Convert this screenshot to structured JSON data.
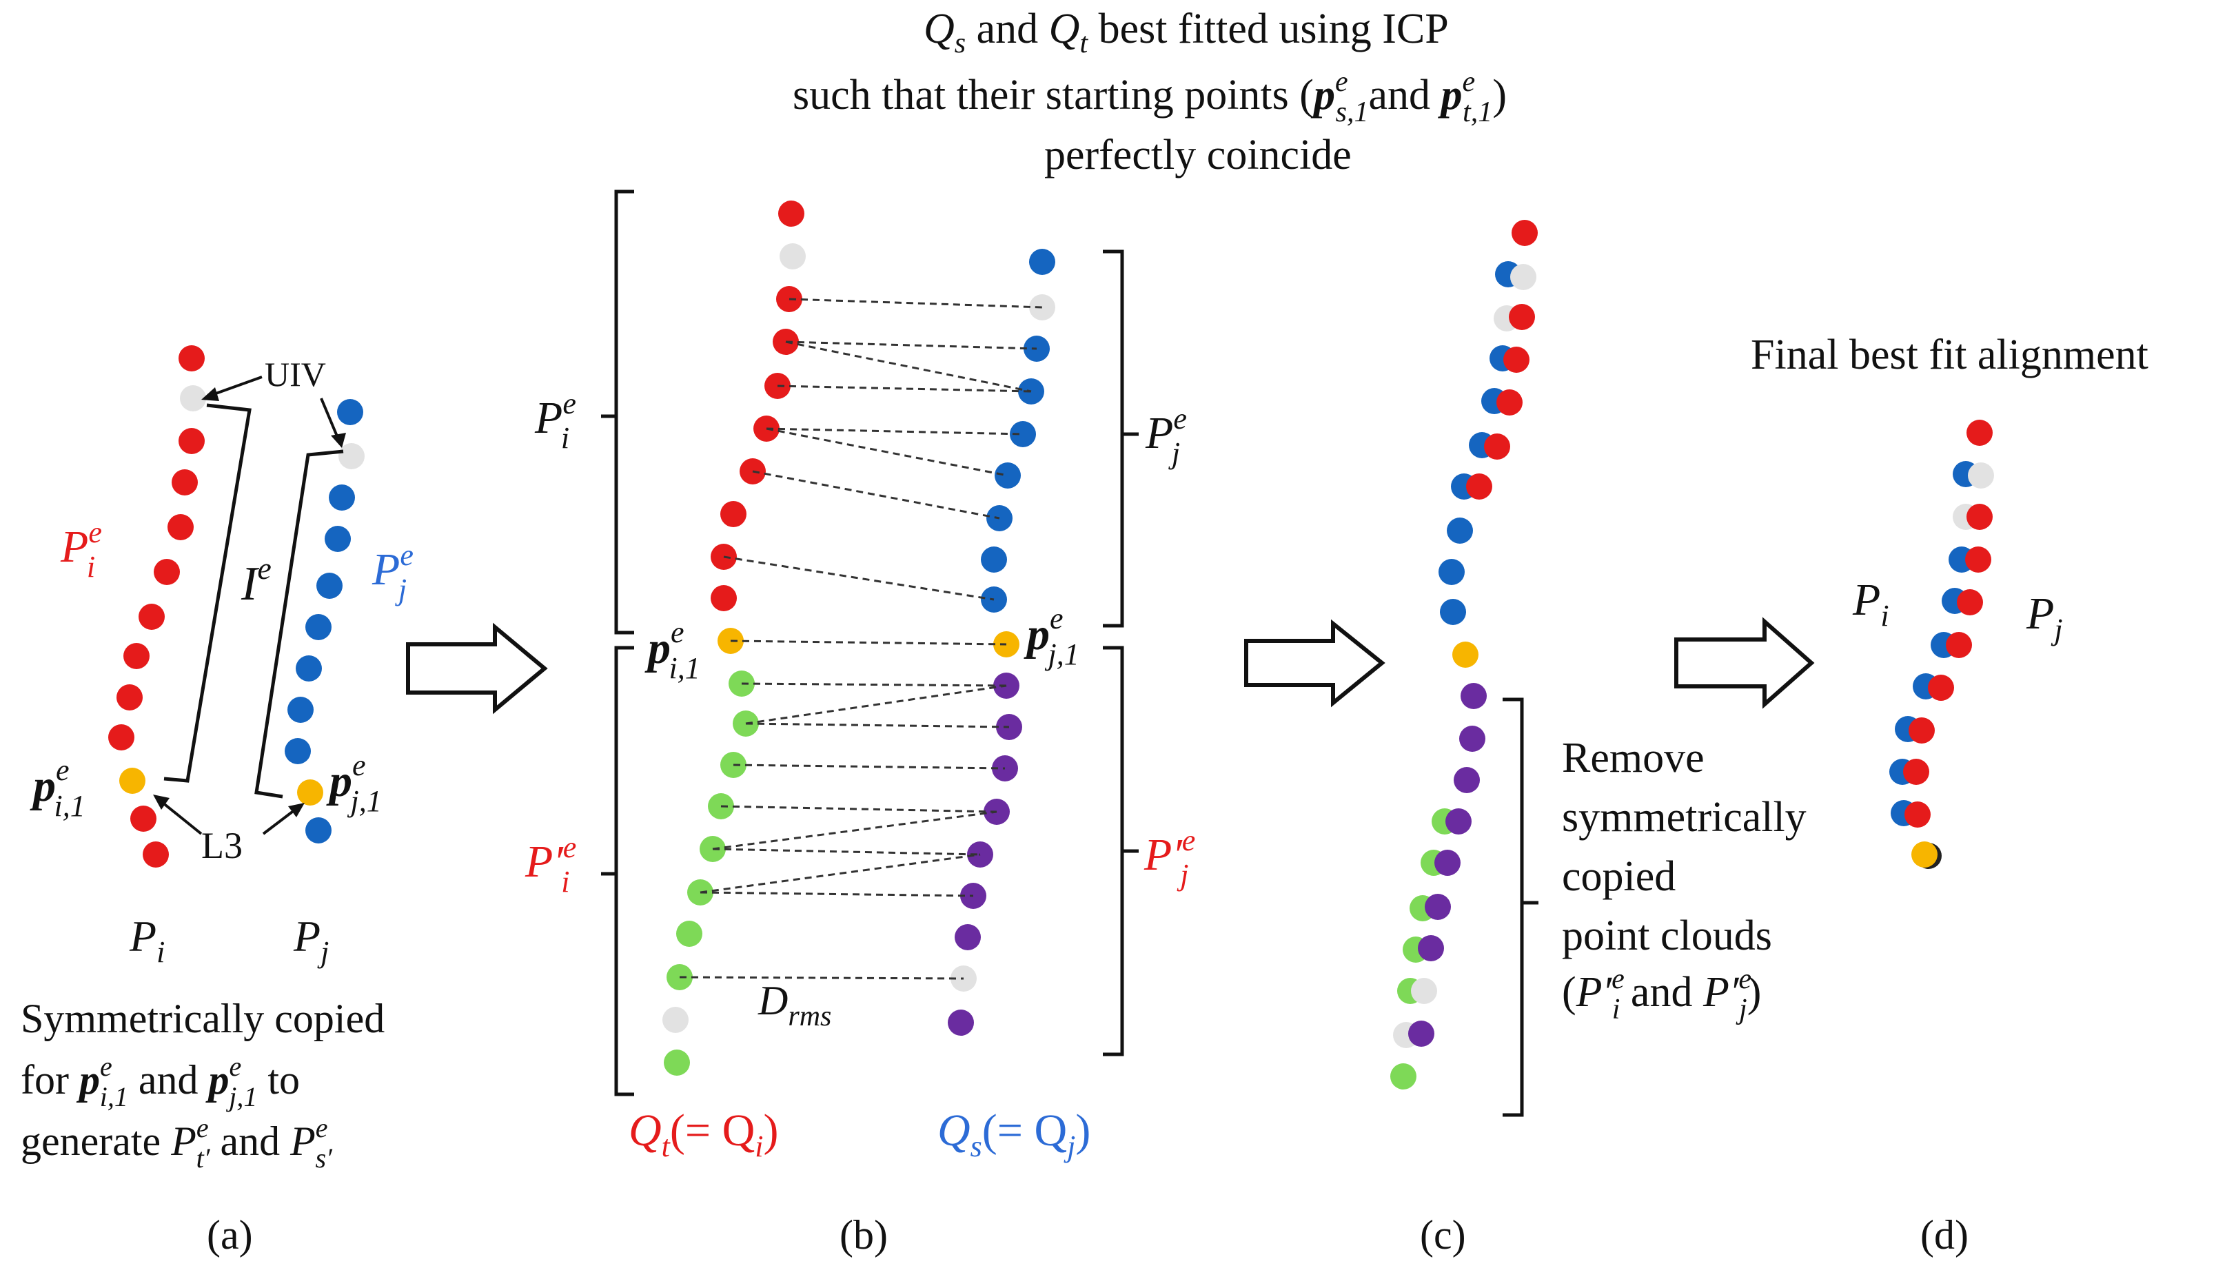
{
  "colors": {
    "red": "#e51b1b",
    "blue": "#1565c0",
    "green": "#7ed957",
    "purple": "#6a2ca0",
    "gray": "#e2e2e2",
    "orange": "#f7b500",
    "text_red": "#e51b1b",
    "text_blue": "#2c6bd6"
  },
  "panel_a": {
    "caption": "(a)",
    "uiv_label": "UIV",
    "l3_label": "L3",
    "ie_label": "I",
    "ie_sup": "e",
    "pi_label": "P",
    "pi_sub": "i",
    "pj_label": "P",
    "pj_sub": "j",
    "pie_label": "P",
    "pie_sub": "i",
    "pie_sup": "e",
    "pje_label": "P",
    "pje_sub": "j",
    "pje_sup": "e",
    "p_i1_label": "p",
    "p_i1_sub": "i,1",
    "p_i1_sup": "e",
    "p_j1_label": "p",
    "p_j1_sub": "j,1",
    "p_j1_sup": "e",
    "desc_line1": "Symmetrically  copied",
    "desc_line2_a": "for ",
    "desc_line2_p1": "p",
    "desc_line2_p1_sub": "i,1",
    "desc_line2_p1_sup": "e",
    "desc_line2_b": " and ",
    "desc_line2_p2": "p",
    "desc_line2_p2_sub": "j,1",
    "desc_line2_p2_sup": "e",
    "desc_line2_c": " to",
    "desc_line3_a": "generate ",
    "desc_line3_p1": "P",
    "desc_line3_p1_sub": "t′",
    "desc_line3_p1_sup": "e",
    "desc_line3_b": " and ",
    "desc_line3_p2": "P",
    "desc_line3_p2_sub": "s′",
    "desc_line3_p2_sup": "e"
  },
  "panel_b": {
    "caption": "(b)",
    "title_line1_q1": "Q",
    "title_line1_q1_sub": "s",
    "title_line1_mid": " and ",
    "title_line1_q2": "Q",
    "title_line1_q2_sub": "t",
    "title_line1_tail": " best fitted using ICP",
    "title_line2_a": "such that their starting points (",
    "title_line2_p1": "p",
    "title_line2_p1_sub": "s,1",
    "title_line2_p1_sup": "e",
    "title_line2_b": "and ",
    "title_line2_p2": "p",
    "title_line2_p2_sub": "t,1",
    "title_line2_p2_sup": "e",
    "title_line2_c": ")",
    "title_line3": "perfectly coincide",
    "pie_label": "P",
    "pie_sub": "i",
    "pie_sup": "e",
    "pje_label": "P",
    "pje_sub": "j",
    "pje_sup": "e",
    "ppie_label": "P′",
    "ppie_sub": "i",
    "ppie_sup": "e",
    "ppje_label": "P′",
    "ppje_sub": "j",
    "ppje_sup": "e",
    "p_i1_label": "p",
    "p_i1_sub": "i,1",
    "p_i1_sup": "e",
    "p_j1_label": "p",
    "p_j1_sub": "j,1",
    "p_j1_sup": "e",
    "drms_label": "D",
    "drms_sub": "rms",
    "qt_label": "Q",
    "qt_sub": "t",
    "qt_paren": "(= Q",
    "qt_paren_sub": "i",
    "qt_close": ")",
    "qs_label": "Q",
    "qs_sub": "s",
    "qs_paren": "(= Q",
    "qs_paren_sub": "j",
    "qs_close": ")"
  },
  "panel_c": {
    "caption": "(c)",
    "remove_line1": "Remove",
    "remove_line2": "symmetrically",
    "remove_line3": "copied",
    "remove_line4": "point clouds",
    "remove_line5_a": "(",
    "remove_line5_p1": "P′",
    "remove_line5_p1_sub": "i",
    "remove_line5_p1_sup": "e",
    "remove_line5_b": " and ",
    "remove_line5_p2": "P′",
    "remove_line5_p2_sub": "j",
    "remove_line5_p2_sup": "e",
    "remove_line5_c": ")"
  },
  "panel_d": {
    "caption": "(d)",
    "title": "Final best fit alignment",
    "pi_label": "P",
    "pi_sub": "i",
    "pj_label": "P",
    "pj_sub": "j"
  }
}
